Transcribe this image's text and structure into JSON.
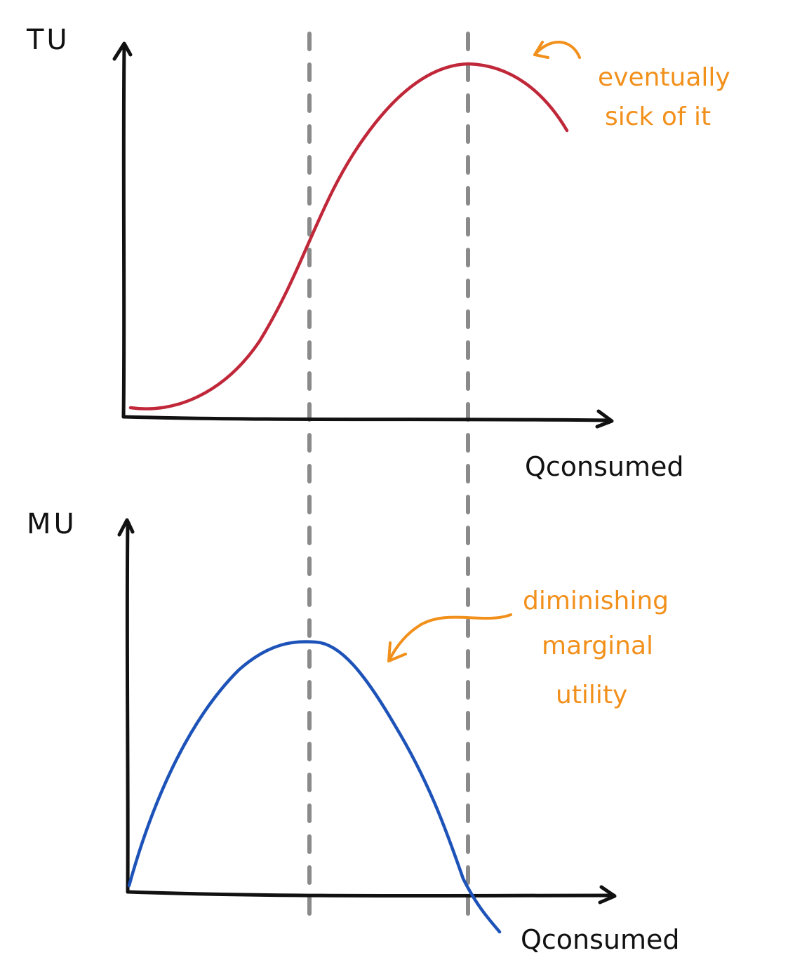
{
  "colors": {
    "axis": "#111111",
    "guide": "#8a8a8a",
    "total_utility_curve": "#c0283a",
    "marginal_utility_curve": "#1d53b8",
    "annotation": "#f2901c"
  },
  "top_panel": {
    "y_label": "TU",
    "x_label": "Qconsumed",
    "annotation": [
      "eventually",
      "sick of it"
    ]
  },
  "bottom_panel": {
    "y_label": "MU",
    "x_label": "Qconsumed",
    "annotation": [
      "diminishing",
      "marginal",
      "utility"
    ]
  }
}
